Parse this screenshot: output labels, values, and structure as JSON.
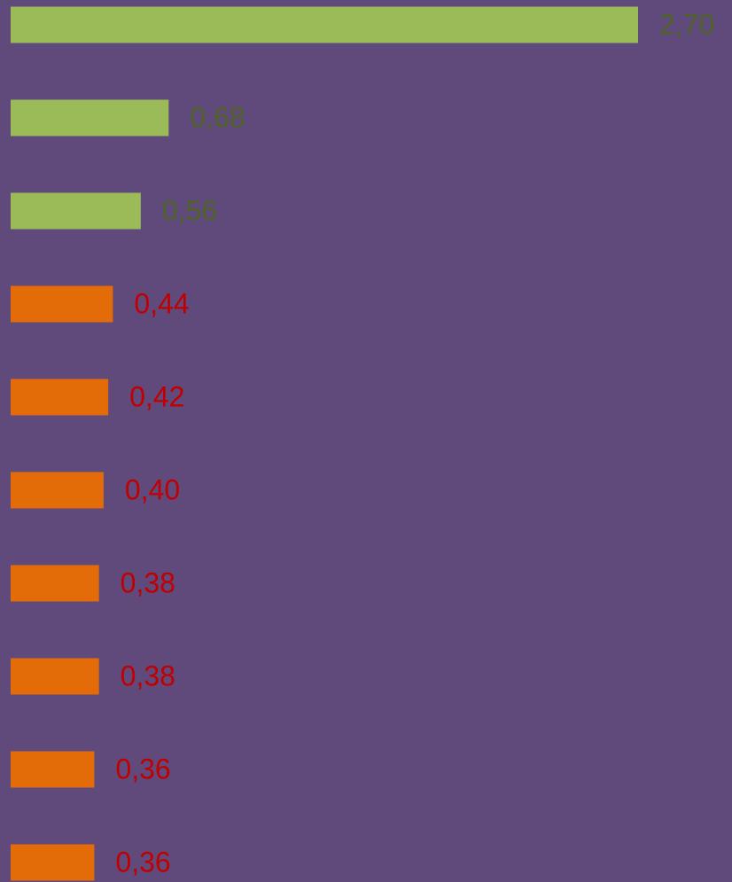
{
  "chart_data": {
    "type": "barh",
    "values": [
      2.7,
      0.68,
      0.56,
      0.44,
      0.42,
      0.4,
      0.38,
      0.38,
      0.36,
      0.36
    ],
    "value_labels": [
      "2,70",
      "0,68",
      "0,56",
      "0,44",
      "0,42",
      "0,40",
      "0,38",
      "0,38",
      "0,36",
      "0,36"
    ],
    "colors": [
      "#9bbb59",
      "#9bbb59",
      "#9bbb59",
      "#e36c09",
      "#e36c09",
      "#e36c09",
      "#e36c09",
      "#e36c09",
      "#e36c09",
      "#e36c09"
    ],
    "label_colors": [
      "#4f6228",
      "#4f6228",
      "#4f6228",
      "#c00000",
      "#c00000",
      "#c00000",
      "#c00000",
      "#c00000",
      "#c00000",
      "#c00000"
    ],
    "background": "#604a7b"
  }
}
